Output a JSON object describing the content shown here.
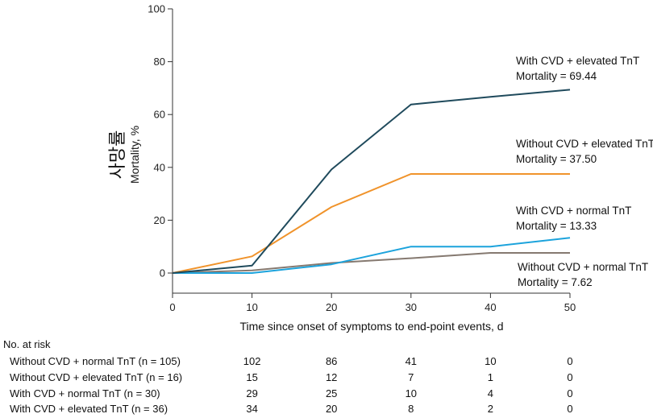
{
  "chart_data": {
    "type": "line",
    "title": "",
    "xlabel": "Time since onset of symptoms to end-point events, d",
    "ylabel": "Mortality, %",
    "ylabel_overlay": "사망률",
    "xlim": [
      0,
      50
    ],
    "ylim": [
      0,
      100
    ],
    "x_ticks": [
      0,
      10,
      20,
      30,
      40,
      50
    ],
    "y_ticks": [
      0,
      20,
      40,
      60,
      80,
      100
    ],
    "grid": false,
    "series": [
      {
        "key": "cvd_elev",
        "color": "#1f4a5c",
        "x": [
          0,
          10,
          20,
          30,
          40,
          50
        ],
        "y": [
          0,
          2.8,
          39.2,
          63.8,
          66.7,
          69.4
        ],
        "label_line1": "With CVD + elevated TnT",
        "label_line2": "Mortality = 69.44"
      },
      {
        "key": "nocvd_elev",
        "color": "#f0932b",
        "x": [
          0,
          10,
          20,
          30,
          40,
          50
        ],
        "y": [
          0,
          6.3,
          25.0,
          37.5,
          37.5,
          37.5
        ],
        "label_line1": "Without CVD + elevated TnT",
        "label_line2": "Mortality = 37.50"
      },
      {
        "key": "cvd_norm",
        "color": "#1ca3dc",
        "x": [
          0,
          10,
          20,
          30,
          40,
          50
        ],
        "y": [
          0,
          0,
          3.3,
          10.0,
          10.0,
          13.33
        ],
        "label_line1": "With CVD + normal TnT",
        "label_line2": "Mortality = 13.33"
      },
      {
        "key": "nocvd_norm",
        "color": "#857970",
        "x": [
          0,
          10,
          20,
          30,
          40,
          50
        ],
        "y": [
          0,
          1.0,
          3.8,
          5.6,
          7.62,
          7.62
        ],
        "label_line1": "Without CVD + normal TnT",
        "label_line2": "Mortality = 7.62"
      }
    ],
    "risk_table": {
      "title": "No. at risk",
      "rows": [
        {
          "label": "Without CVD + normal TnT (n = 105)",
          "values": [
            "102",
            "86",
            "41",
            "10",
            "0"
          ]
        },
        {
          "label": "Without CVD + elevated TnT (n = 16)",
          "values": [
            "15",
            "12",
            "7",
            "1",
            "0"
          ]
        },
        {
          "label": "With CVD + normal TnT (n = 30)",
          "values": [
            "29",
            "25",
            "10",
            "4",
            "0"
          ]
        },
        {
          "label": "With CVD + elevated TnT (n = 36)",
          "values": [
            "34",
            "20",
            "8",
            "2",
            "0"
          ]
        }
      ]
    }
  }
}
